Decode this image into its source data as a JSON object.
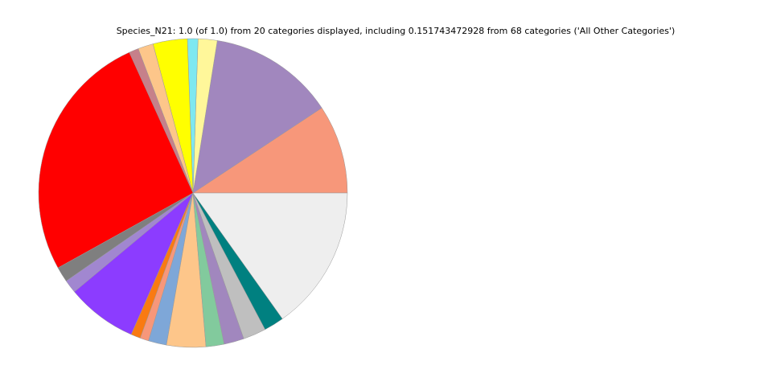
{
  "chart_data": {
    "type": "pie",
    "title": "Species_N21: 1.0 (of 1.0) from 20 categories displayed, including 0.151743472928 from 68 categories ('All Other Categories')",
    "values": [
      0.093,
      0.132,
      0.02,
      0.011,
      0.036,
      0.016,
      0.01,
      0.263,
      0.016,
      0.014,
      0.074,
      0.01,
      0.009,
      0.019,
      0.041,
      0.019,
      0.021,
      0.024,
      0.021,
      0.151743472928
    ],
    "colors": [
      "#f7977a",
      "#a187be",
      "#fff79a",
      "#7ee8f0",
      "#ffff00",
      "#fdc68a",
      "#c6808a",
      "#ff0000",
      "#7f7f7f",
      "#a187d0",
      "#8c3cff",
      "#f97a12",
      "#f7977a",
      "#7ea7d8",
      "#fdc68a",
      "#82ca9d",
      "#a187be",
      "#bfbfbf",
      "#008080",
      "#eeeeee"
    ],
    "start_angle": 0,
    "counterclockwise": true
  }
}
